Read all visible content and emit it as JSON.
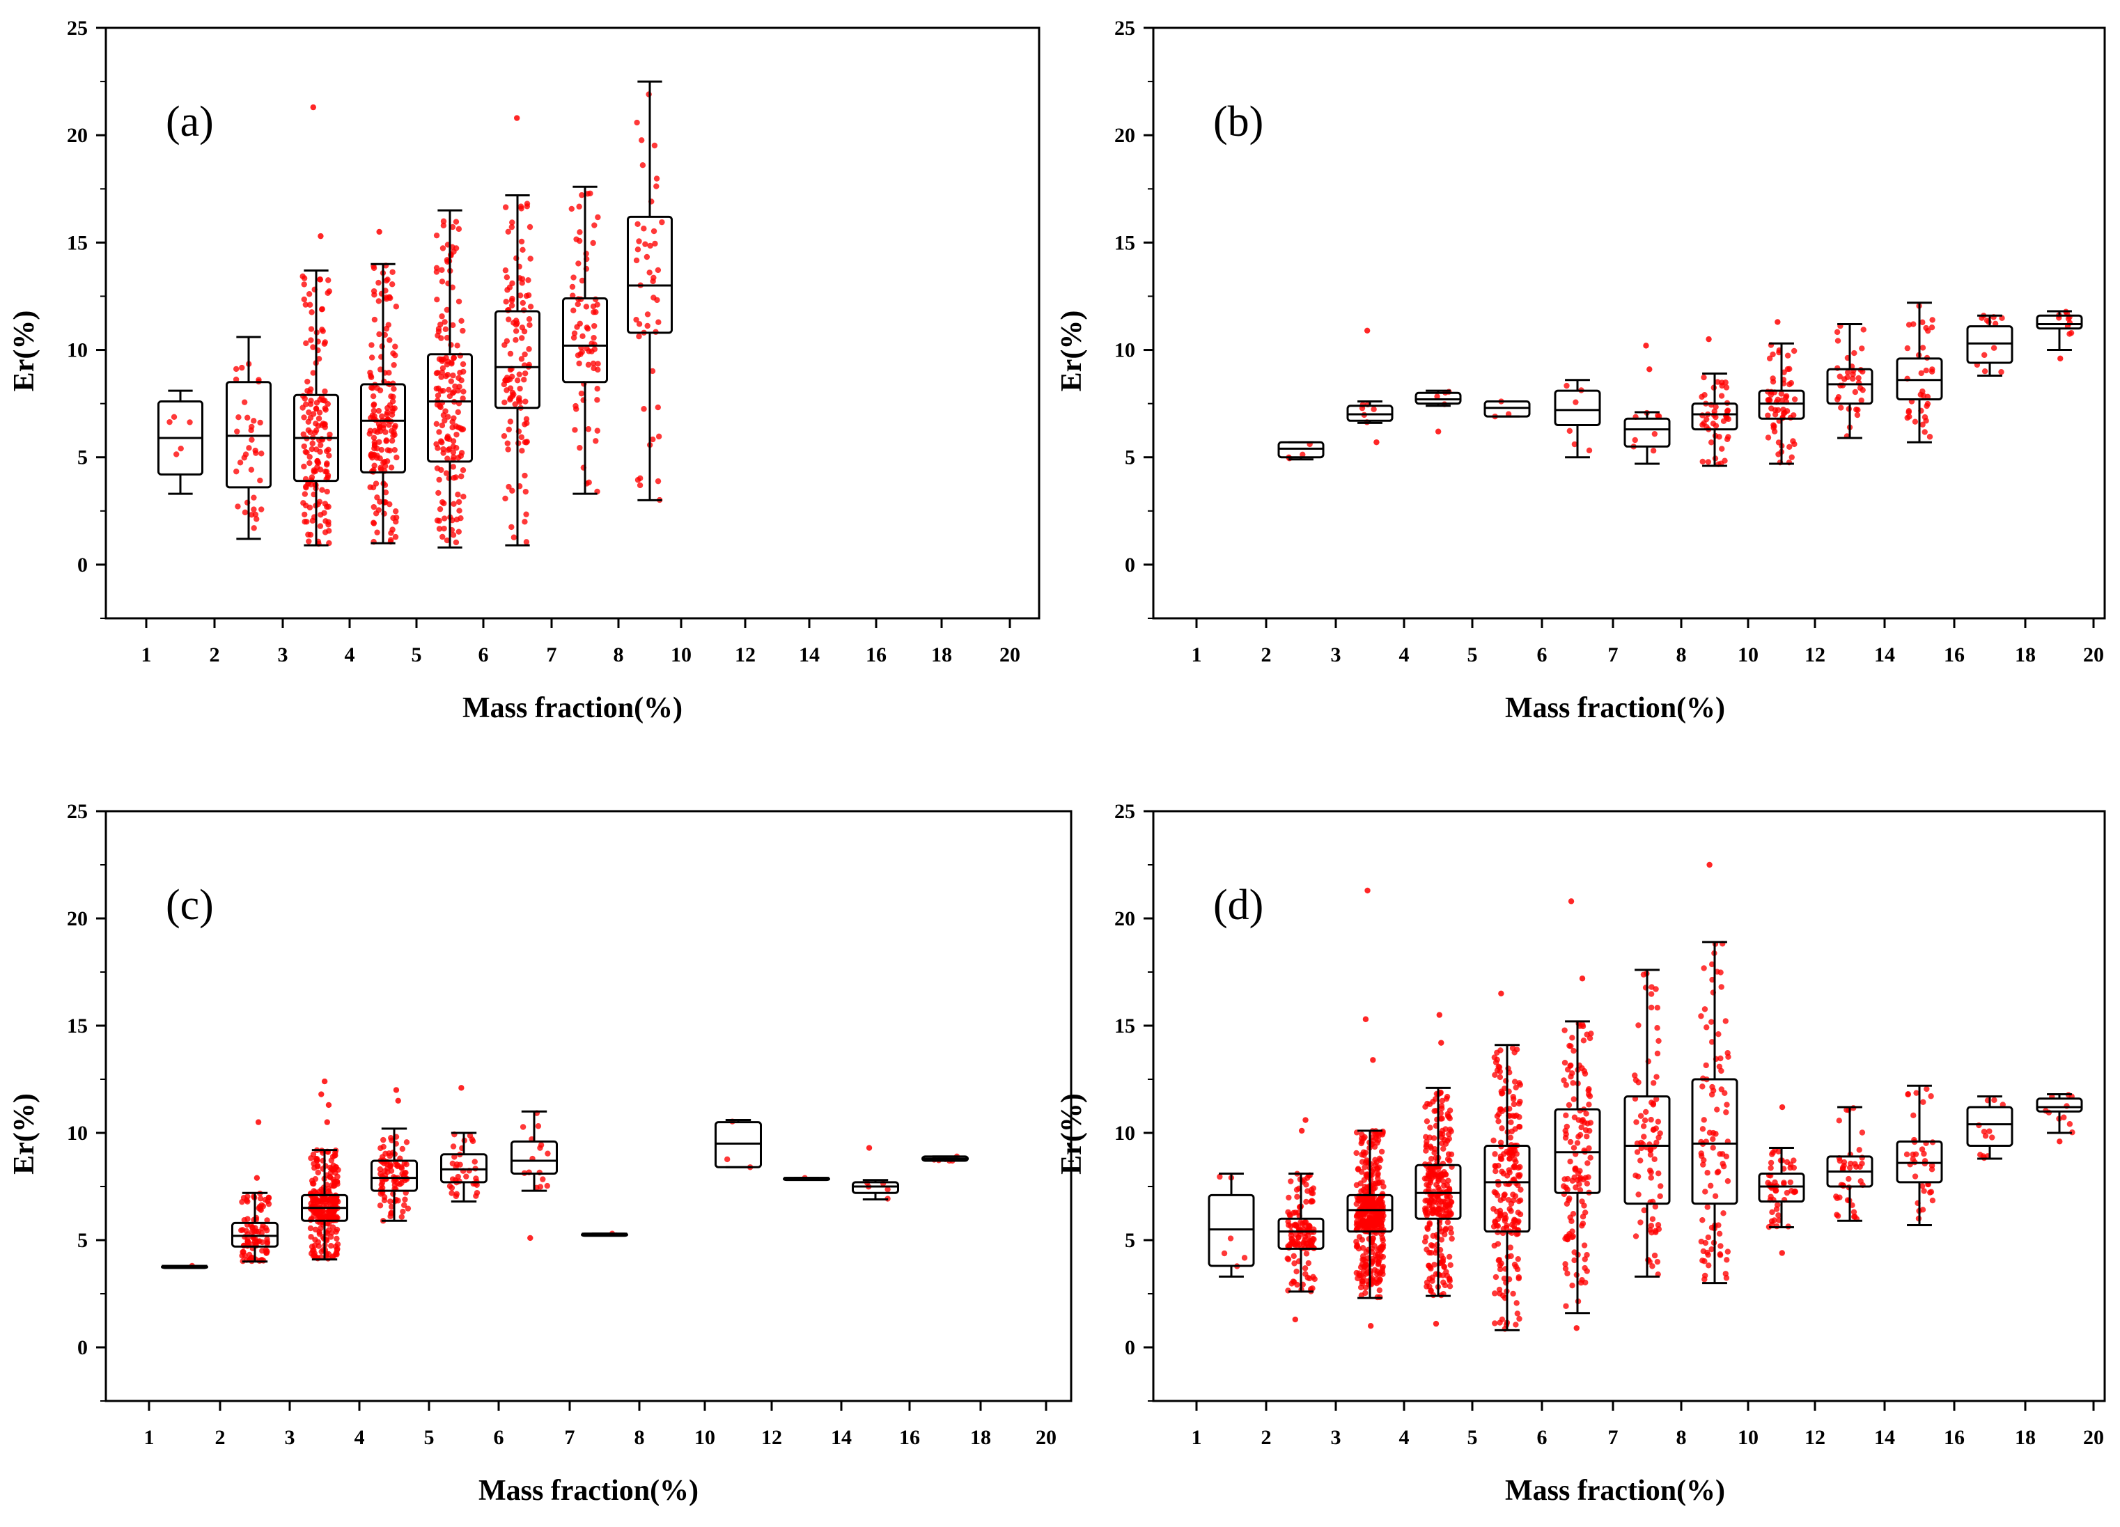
{
  "chart_data": [
    {
      "type": "box",
      "panel_label": "(a)",
      "xlabel": "Mass fraction(%)",
      "ylabel": "Er(%)",
      "ylim": [
        -2.5,
        25
      ],
      "yticks": [
        "0",
        "5",
        "10",
        "15",
        "20",
        "25"
      ],
      "categories": [
        "1",
        "2",
        "3",
        "4",
        "5",
        "6",
        "7",
        "8",
        "10",
        "12",
        "14",
        "16",
        "18",
        "20"
      ],
      "points_color": "#ff0000",
      "boxes": [
        {
          "category": "1",
          "whisker_low": 3.3,
          "q1": 4.2,
          "median": 5.9,
          "q3": 7.6,
          "whisker_high": 8.1,
          "n_points": 5
        },
        {
          "category": "2",
          "whisker_low": 1.2,
          "q1": 3.6,
          "median": 6.0,
          "q3": 8.5,
          "whisker_high": 10.6,
          "n_points": 35
        },
        {
          "category": "3",
          "whisker_low": 0.9,
          "q1": 3.9,
          "median": 5.9,
          "q3": 7.9,
          "whisker_high": 13.7,
          "n_points": 150,
          "outliers": [
            15.3,
            21.3
          ]
        },
        {
          "category": "4",
          "whisker_low": 1.0,
          "q1": 4.3,
          "median": 6.7,
          "q3": 8.4,
          "whisker_high": 14.0,
          "n_points": 160,
          "outliers": [
            15.5
          ]
        },
        {
          "category": "5",
          "whisker_low": 0.8,
          "q1": 4.8,
          "median": 7.6,
          "q3": 9.8,
          "whisker_high": 16.5,
          "n_points": 160
        },
        {
          "category": "6",
          "whisker_low": 0.9,
          "q1": 7.3,
          "median": 9.2,
          "q3": 11.8,
          "whisker_high": 17.2,
          "n_points": 110,
          "outliers": [
            20.8
          ]
        },
        {
          "category": "7",
          "whisker_low": 3.3,
          "q1": 8.5,
          "median": 10.2,
          "q3": 12.4,
          "whisker_high": 17.6,
          "n_points": 70
        },
        {
          "category": "8",
          "whisker_low": 3.0,
          "q1": 10.8,
          "median": 13.0,
          "q3": 16.2,
          "whisker_high": 22.5,
          "n_points": 45
        }
      ]
    },
    {
      "type": "box",
      "panel_label": "(b)",
      "xlabel": "Mass fraction(%)",
      "ylabel": "Er(%)",
      "ylim": [
        -2.5,
        25
      ],
      "yticks": [
        "0",
        "5",
        "10",
        "15",
        "20",
        "25"
      ],
      "categories": [
        "1",
        "2",
        "3",
        "4",
        "5",
        "6",
        "7",
        "8",
        "10",
        "12",
        "14",
        "16",
        "18",
        "20"
      ],
      "points_color": "#ff0000",
      "boxes": [
        {
          "category": "2",
          "whisker_low": 4.9,
          "q1": 5.0,
          "median": 5.4,
          "q3": 5.7,
          "whisker_high": 5.7,
          "n_points": 4
        },
        {
          "category": "3",
          "whisker_low": 6.6,
          "q1": 6.7,
          "median": 7.0,
          "q3": 7.4,
          "whisker_high": 7.6,
          "n_points": 6,
          "outliers": [
            10.9,
            5.7
          ]
        },
        {
          "category": "4",
          "whisker_low": 7.4,
          "q1": 7.5,
          "median": 7.7,
          "q3": 8.0,
          "whisker_high": 8.1,
          "n_points": 4,
          "outliers": [
            6.2
          ]
        },
        {
          "category": "5",
          "whisker_low": 6.9,
          "q1": 6.9,
          "median": 7.3,
          "q3": 7.6,
          "whisker_high": 7.6,
          "n_points": 3
        },
        {
          "category": "6",
          "whisker_low": 5.0,
          "q1": 6.5,
          "median": 7.2,
          "q3": 8.1,
          "whisker_high": 8.6,
          "n_points": 6
        },
        {
          "category": "7",
          "whisker_low": 4.7,
          "q1": 5.5,
          "median": 6.3,
          "q3": 6.8,
          "whisker_high": 7.1,
          "n_points": 8,
          "outliers": [
            10.2,
            9.1
          ]
        },
        {
          "category": "8",
          "whisker_low": 4.6,
          "q1": 6.3,
          "median": 7.0,
          "q3": 7.5,
          "whisker_high": 8.9,
          "n_points": 45,
          "outliers": [
            10.5
          ]
        },
        {
          "category": "10",
          "whisker_low": 4.7,
          "q1": 6.8,
          "median": 7.5,
          "q3": 8.1,
          "whisker_high": 10.3,
          "n_points": 60,
          "outliers": [
            11.3
          ]
        },
        {
          "category": "12",
          "whisker_low": 5.9,
          "q1": 7.5,
          "median": 8.4,
          "q3": 9.1,
          "whisker_high": 11.2,
          "n_points": 35
        },
        {
          "category": "14",
          "whisker_low": 5.7,
          "q1": 7.7,
          "median": 8.6,
          "q3": 9.6,
          "whisker_high": 12.2,
          "n_points": 35
        },
        {
          "category": "16",
          "whisker_low": 8.8,
          "q1": 9.4,
          "median": 10.3,
          "q3": 11.1,
          "whisker_high": 11.6,
          "n_points": 12
        },
        {
          "category": "18",
          "whisker_low": 10.0,
          "q1": 11.0,
          "median": 11.2,
          "q3": 11.6,
          "whisker_high": 11.8,
          "n_points": 10,
          "outliers": [
            9.6
          ]
        }
      ]
    },
    {
      "type": "box",
      "panel_label": "(c)",
      "xlabel": "Mass fraction(%)",
      "ylabel": "Er(%)",
      "ylim": [
        -2.5,
        25
      ],
      "yticks": [
        "0",
        "5",
        "10",
        "15",
        "20",
        "25"
      ],
      "categories": [
        "1",
        "2",
        "3",
        "4",
        "5",
        "6",
        "7",
        "8",
        "10",
        "12",
        "14",
        "16",
        "18",
        "20"
      ],
      "points_color": "#ff0000",
      "boxes": [
        {
          "category": "1",
          "whisker_low": 3.8,
          "q1": 3.8,
          "median": 3.8,
          "q3": 3.8,
          "whisker_high": 3.8,
          "n_points": 1
        },
        {
          "category": "2",
          "whisker_low": 4.0,
          "q1": 4.7,
          "median": 5.2,
          "q3": 5.8,
          "whisker_high": 7.2,
          "n_points": 90,
          "outliers": [
            10.5,
            7.9
          ]
        },
        {
          "category": "3",
          "whisker_low": 4.1,
          "q1": 5.9,
          "median": 6.5,
          "q3": 7.1,
          "whisker_high": 9.2,
          "n_points": 250,
          "outliers": [
            12.4,
            11.8,
            11.3,
            10.5
          ]
        },
        {
          "category": "4",
          "whisker_low": 5.9,
          "q1": 7.3,
          "median": 7.9,
          "q3": 8.7,
          "whisker_high": 10.2,
          "n_points": 90,
          "outliers": [
            12.0,
            11.5
          ]
        },
        {
          "category": "5",
          "whisker_low": 6.8,
          "q1": 7.7,
          "median": 8.3,
          "q3": 9.0,
          "whisker_high": 10.0,
          "n_points": 35,
          "outliers": [
            12.1
          ]
        },
        {
          "category": "6",
          "whisker_low": 7.3,
          "q1": 8.1,
          "median": 8.7,
          "q3": 9.6,
          "whisker_high": 11.0,
          "n_points": 15,
          "outliers": [
            5.1
          ]
        },
        {
          "category": "7",
          "whisker_low": 5.3,
          "q1": 5.3,
          "median": 5.3,
          "q3": 5.3,
          "whisker_high": 5.3,
          "n_points": 1
        },
        {
          "category": "10",
          "whisker_low": 8.4,
          "q1": 8.4,
          "median": 9.5,
          "q3": 10.5,
          "whisker_high": 10.6,
          "n_points": 3
        },
        {
          "category": "12",
          "whisker_low": 7.9,
          "q1": 7.9,
          "median": 7.9,
          "q3": 7.9,
          "whisker_high": 7.9,
          "n_points": 1
        },
        {
          "category": "14",
          "whisker_low": 6.9,
          "q1": 7.2,
          "median": 7.5,
          "q3": 7.7,
          "whisker_high": 7.8,
          "n_points": 5,
          "outliers": [
            9.3
          ]
        },
        {
          "category": "16",
          "whisker_low": 8.7,
          "q1": 8.7,
          "median": 8.8,
          "q3": 8.9,
          "whisker_high": 8.9,
          "n_points": 6
        }
      ]
    },
    {
      "type": "box",
      "panel_label": "(d)",
      "xlabel": "Mass fraction(%)",
      "ylabel": "Er(%)",
      "ylim": [
        -2.5,
        25
      ],
      "yticks": [
        "0",
        "5",
        "10",
        "15",
        "20",
        "25"
      ],
      "categories": [
        "1",
        "2",
        "3",
        "4",
        "5",
        "6",
        "7",
        "8",
        "10",
        "12",
        "14",
        "16",
        "18",
        "20"
      ],
      "points_color": "#ff0000",
      "boxes": [
        {
          "category": "1",
          "whisker_low": 3.3,
          "q1": 3.8,
          "median": 5.5,
          "q3": 7.1,
          "whisker_high": 8.1,
          "n_points": 6
        },
        {
          "category": "2",
          "whisker_low": 2.6,
          "q1": 4.6,
          "median": 5.4,
          "q3": 6.0,
          "whisker_high": 8.1,
          "n_points": 130,
          "outliers": [
            10.6,
            10.1,
            1.3
          ]
        },
        {
          "category": "3",
          "whisker_low": 2.3,
          "q1": 5.4,
          "median": 6.4,
          "q3": 7.1,
          "whisker_high": 10.1,
          "n_points": 400,
          "outliers": [
            21.3,
            15.3,
            13.4,
            1.0
          ]
        },
        {
          "category": "4",
          "whisker_low": 2.4,
          "q1": 6.0,
          "median": 7.2,
          "q3": 8.5,
          "whisker_high": 12.1,
          "n_points": 260,
          "outliers": [
            15.5,
            14.2,
            1.1
          ]
        },
        {
          "category": "5",
          "whisker_low": 0.8,
          "q1": 5.4,
          "median": 7.7,
          "q3": 9.4,
          "whisker_high": 14.1,
          "n_points": 200,
          "outliers": [
            16.5
          ]
        },
        {
          "category": "6",
          "whisker_low": 1.6,
          "q1": 7.2,
          "median": 9.1,
          "q3": 11.1,
          "whisker_high": 15.2,
          "n_points": 130,
          "outliers": [
            20.8,
            17.2,
            0.9
          ]
        },
        {
          "category": "7",
          "whisker_low": 3.3,
          "q1": 6.7,
          "median": 9.4,
          "q3": 11.7,
          "whisker_high": 17.6,
          "n_points": 80
        },
        {
          "category": "8",
          "whisker_low": 3.0,
          "q1": 6.7,
          "median": 9.5,
          "q3": 12.5,
          "whisker_high": 18.9,
          "n_points": 90,
          "outliers": [
            22.5
          ]
        },
        {
          "category": "10",
          "whisker_low": 5.6,
          "q1": 6.8,
          "median": 7.5,
          "q3": 8.1,
          "whisker_high": 9.3,
          "n_points": 50,
          "outliers": [
            11.2,
            4.4
          ]
        },
        {
          "category": "12",
          "whisker_low": 5.9,
          "q1": 7.5,
          "median": 8.2,
          "q3": 8.9,
          "whisker_high": 11.2,
          "n_points": 40
        },
        {
          "category": "14",
          "whisker_low": 5.7,
          "q1": 7.7,
          "median": 8.6,
          "q3": 9.6,
          "whisker_high": 12.2,
          "n_points": 35
        },
        {
          "category": "16",
          "whisker_low": 8.8,
          "q1": 9.4,
          "median": 10.4,
          "q3": 11.2,
          "whisker_high": 11.7,
          "n_points": 12
        },
        {
          "category": "18",
          "whisker_low": 10.0,
          "q1": 11.0,
          "median": 11.2,
          "q3": 11.6,
          "whisker_high": 11.8,
          "n_points": 10,
          "outliers": [
            9.6
          ]
        }
      ]
    }
  ]
}
